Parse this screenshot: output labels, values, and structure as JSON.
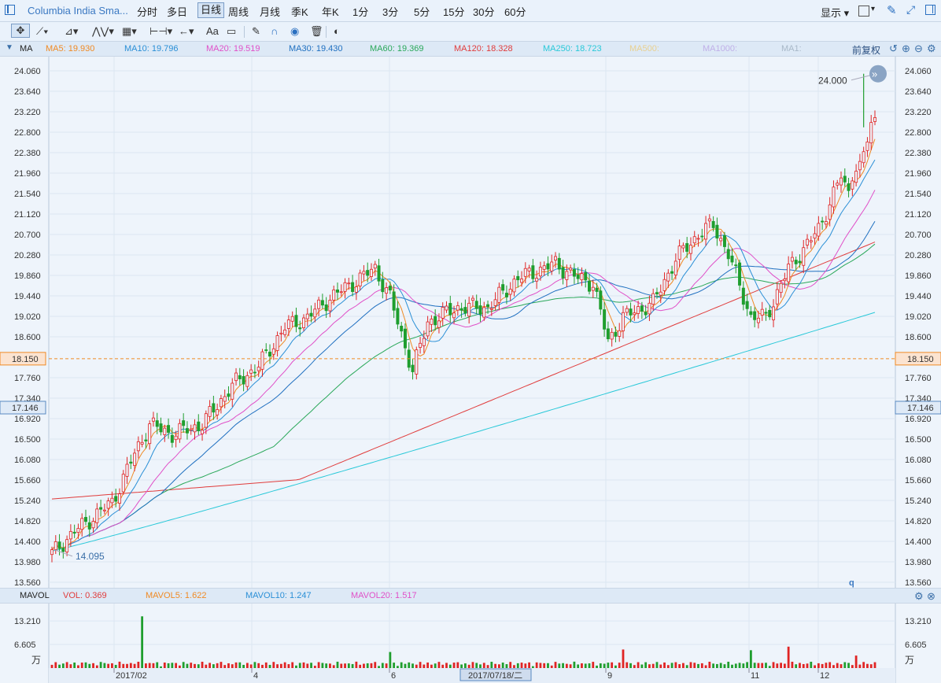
{
  "topbar": {
    "title": "Columbia India Sma...",
    "periods": [
      "分时",
      "多日",
      "日线",
      "周线",
      "月线",
      "季K",
      "年K",
      "1分",
      "3分",
      "5分",
      "15分",
      "30分",
      "60分"
    ],
    "active_period": "日线",
    "display_label": "显示"
  },
  "ma_legend": {
    "name": "MA",
    "items": [
      {
        "label": "MA5: 19.930",
        "color": "#f08a24"
      },
      {
        "label": "MA10: 19.796",
        "color": "#2a8fd6"
      },
      {
        "label": "MA20: 19.519",
        "color": "#e050c8"
      },
      {
        "label": "MA30: 19.430",
        "color": "#1e6fc0"
      },
      {
        "label": "MA60: 19.369",
        "color": "#2aa85a"
      },
      {
        "label": "MA120: 18.328",
        "color": "#e03c3c"
      },
      {
        "label": "MA250: 18.723",
        "color": "#28c8d8"
      },
      {
        "label": "MA500:",
        "color": "#e8d090"
      },
      {
        "label": "MA1000:",
        "color": "#c0b0e8"
      },
      {
        "label": "MA1:",
        "color": "#a8b8c8"
      }
    ],
    "adjust_label": "前复权"
  },
  "vol_legend": {
    "name": "MAVOL",
    "items": [
      {
        "label": "VOL: 0.369",
        "color": "#e03c3c"
      },
      {
        "label": "MAVOL5: 1.622",
        "color": "#f08a24"
      },
      {
        "label": "MAVOL10: 1.247",
        "color": "#2a8fd6"
      },
      {
        "label": "MAVOL20: 1.517",
        "color": "#e050c8"
      }
    ]
  },
  "chart_data": {
    "type": "candlestick",
    "price_axis_ticks": [
      "24.060",
      "23.640",
      "23.220",
      "22.800",
      "22.380",
      "21.960",
      "21.540",
      "21.120",
      "20.700",
      "20.280",
      "19.860",
      "19.440",
      "19.020",
      "18.600",
      "17.760",
      "17.340",
      "16.920",
      "16.500",
      "16.080",
      "15.660",
      "15.240",
      "14.820",
      "14.400",
      "13.980",
      "13.560"
    ],
    "ylim": [
      13.56,
      24.06
    ],
    "current_price_label": "18.150",
    "current_price": 18.15,
    "crosshair_label": "17.146",
    "crosshair_price": 17.146,
    "max_label": "24.000",
    "max_price": 24.0,
    "min_label": "14.095",
    "min_price": 14.095,
    "x_labels": [
      "2017/02",
      "4",
      "6",
      "9",
      "11",
      "12"
    ],
    "crosshair_date_label": "2017/07/18/二",
    "volume_axis_ticks": [
      "13.210",
      "6.605"
    ],
    "volume_unit": "万",
    "volume_ylim": [
      0,
      15
    ],
    "corner_mark": "q",
    "ma_colors": {
      "ma5": "#f08a24",
      "ma10": "#2a8fd6",
      "ma20": "#e050c8",
      "ma30": "#1e6fc0",
      "ma60": "#2aa85a",
      "ma120": "#e03c3c",
      "ma250": "#28c8d8"
    }
  }
}
